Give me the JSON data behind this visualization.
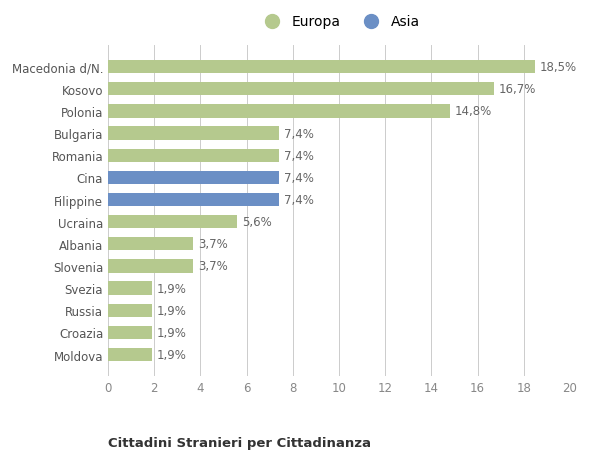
{
  "categories": [
    "Moldova",
    "Croazia",
    "Russia",
    "Svezia",
    "Slovenia",
    "Albania",
    "Ucraina",
    "Filippine",
    "Cina",
    "Romania",
    "Bulgaria",
    "Polonia",
    "Kosovo",
    "Macedonia d/N."
  ],
  "values": [
    1.9,
    1.9,
    1.9,
    1.9,
    3.7,
    3.7,
    5.6,
    7.4,
    7.4,
    7.4,
    7.4,
    14.8,
    16.7,
    18.5
  ],
  "labels": [
    "1,9%",
    "1,9%",
    "1,9%",
    "1,9%",
    "3,7%",
    "3,7%",
    "5,6%",
    "7,4%",
    "7,4%",
    "7,4%",
    "7,4%",
    "14,8%",
    "16,7%",
    "18,5%"
  ],
  "colors": [
    "#b5c98e",
    "#b5c98e",
    "#b5c98e",
    "#b5c98e",
    "#b5c98e",
    "#b5c98e",
    "#b5c98e",
    "#6b8fc5",
    "#6b8fc5",
    "#b5c98e",
    "#b5c98e",
    "#b5c98e",
    "#b5c98e",
    "#b5c98e"
  ],
  "europa_color": "#b5c98e",
  "asia_color": "#6b8fc5",
  "bg_color": "#ffffff",
  "plot_bg_color": "#ffffff",
  "grid_color": "#cccccc",
  "title1": "Cittadini Stranieri per Cittadinanza",
  "xlim": [
    0,
    20
  ],
  "xticks": [
    0,
    2,
    4,
    6,
    8,
    10,
    12,
    14,
    16,
    18,
    20
  ],
  "label_fontsize": 8.5,
  "tick_fontsize": 8.5,
  "bar_height": 0.6
}
